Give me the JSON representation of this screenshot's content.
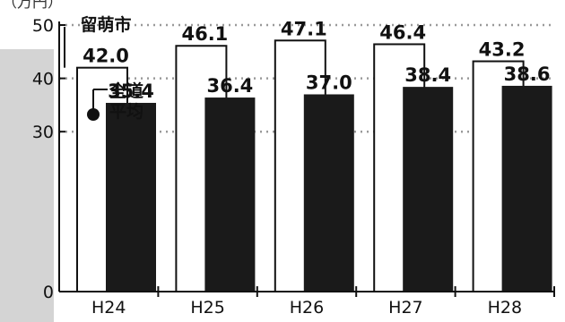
{
  "chart_data": {
    "type": "bar",
    "ylabel": "（万円）",
    "categories": [
      "H24",
      "H25",
      "H26",
      "H27",
      "H28"
    ],
    "ylim": [
      0,
      50
    ],
    "yticks": [
      0,
      30,
      40,
      50
    ],
    "grid": "dotted horizontal",
    "series": [
      {
        "name": "留萌市",
        "values": [
          42.0,
          46.1,
          47.1,
          46.4,
          43.2
        ],
        "color": "#ffffff",
        "stroke": "#111111"
      },
      {
        "name": "全道平均",
        "values": [
          35.4,
          36.4,
          37.0,
          38.4,
          38.6
        ],
        "color": "#1a1a1a"
      }
    ],
    "labels": {
      "city_name": "留萌市",
      "avg_line1": "全道",
      "avg_line2": "平均"
    },
    "colors": {
      "sidebar": "#d4d4d4",
      "background": "#ffffff",
      "grid": "#9a9a9a"
    }
  }
}
